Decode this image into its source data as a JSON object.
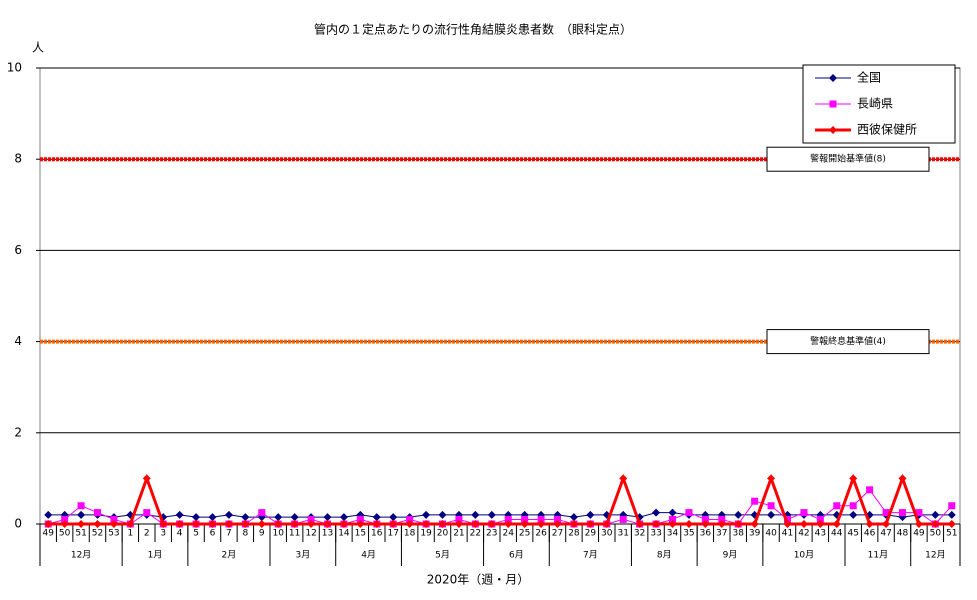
{
  "chart_data": {
    "type": "line",
    "title": "管内の１定点あたりの流行性角結膜炎患者数　（眼科定点）",
    "y_unit": "人",
    "x_label": "2020年（週・月）",
    "categories": [
      "49",
      "50",
      "51",
      "52",
      "53",
      "1",
      "2",
      "3",
      "4",
      "5",
      "6",
      "7",
      "8",
      "9",
      "10",
      "11",
      "12",
      "13",
      "14",
      "15",
      "16",
      "17",
      "18",
      "19",
      "20",
      "21",
      "22",
      "23",
      "24",
      "25",
      "26",
      "27",
      "28",
      "29",
      "30",
      "31",
      "32",
      "33",
      "34",
      "35",
      "36",
      "37",
      "38",
      "39",
      "40",
      "41",
      "42",
      "43",
      "44",
      "45",
      "46",
      "47",
      "48",
      "49",
      "50",
      "51"
    ],
    "month_groups": [
      {
        "label": "12月",
        "weeks": 5
      },
      {
        "label": "1月",
        "weeks": 4
      },
      {
        "label": "2月",
        "weeks": 5
      },
      {
        "label": "3月",
        "weeks": 4
      },
      {
        "label": "4月",
        "weeks": 4
      },
      {
        "label": "5月",
        "weeks": 5
      },
      {
        "label": "6月",
        "weeks": 4
      },
      {
        "label": "7月",
        "weeks": 5
      },
      {
        "label": "8月",
        "weeks": 4
      },
      {
        "label": "9月",
        "weeks": 4
      },
      {
        "label": "10月",
        "weeks": 5
      },
      {
        "label": "11月",
        "weeks": 4
      },
      {
        "label": "12月",
        "weeks": 3
      }
    ],
    "series": [
      {
        "name": "全国",
        "color": "#000080",
        "marker": "diamond",
        "values": [
          0.2,
          0.2,
          0.2,
          0.2,
          0.15,
          0.2,
          0.2,
          0.15,
          0.2,
          0.15,
          0.15,
          0.2,
          0.15,
          0.15,
          0.15,
          0.15,
          0.15,
          0.15,
          0.15,
          0.2,
          0.15,
          0.15,
          0.15,
          0.2,
          0.2,
          0.2,
          0.2,
          0.2,
          0.2,
          0.2,
          0.2,
          0.2,
          0.15,
          0.2,
          0.2,
          0.2,
          0.15,
          0.25,
          0.25,
          0.2,
          0.2,
          0.2,
          0.2,
          0.2,
          0.2,
          0.2,
          0.2,
          0.2,
          0.2,
          0.2,
          0.2,
          0.2,
          0.15,
          0.2,
          0.2,
          0.2
        ]
      },
      {
        "name": "長崎県",
        "color": "#ff00ff",
        "marker": "square",
        "values": [
          0,
          0.1,
          0.4,
          0.25,
          0.1,
          0,
          0.25,
          0,
          0,
          0,
          0,
          0,
          0,
          0.25,
          0,
          0,
          0.1,
          0,
          0,
          0.1,
          0,
          0,
          0.1,
          0,
          0,
          0.1,
          0,
          0,
          0.1,
          0.1,
          0.1,
          0.1,
          0,
          0,
          0,
          0.1,
          0,
          0,
          0.1,
          0.25,
          0.1,
          0.1,
          0,
          0.5,
          0.4,
          0.1,
          0.25,
          0.1,
          0.4,
          0.4,
          0.75,
          0.25,
          0.25,
          0.25,
          0,
          0.4
        ]
      },
      {
        "name": "西彼保健所",
        "color": "#ff0000",
        "marker": "diamond",
        "width": 3,
        "values": [
          0,
          0,
          0,
          0,
          0,
          0,
          1,
          0,
          0,
          0,
          0,
          0,
          0,
          0,
          0,
          0,
          0,
          0,
          0,
          0,
          0,
          0,
          0,
          0,
          0,
          0,
          0,
          0,
          0,
          0,
          0,
          0,
          0,
          0,
          0,
          1,
          0,
          0,
          0,
          0,
          0,
          0,
          0,
          0,
          1,
          0,
          0,
          0,
          0,
          1,
          0,
          0,
          1,
          0,
          0,
          0
        ]
      }
    ],
    "reference_lines": [
      {
        "value": 8,
        "label": "警報開始基準値(8)",
        "color": "#ff0000"
      },
      {
        "value": 4,
        "label": "警報終息基準値(4)",
        "color": "#ff6600"
      }
    ],
    "ylim": [
      0,
      10
    ],
    "yticks": [
      0,
      2,
      4,
      6,
      8,
      10
    ],
    "grid": true,
    "legend": "upper right"
  }
}
